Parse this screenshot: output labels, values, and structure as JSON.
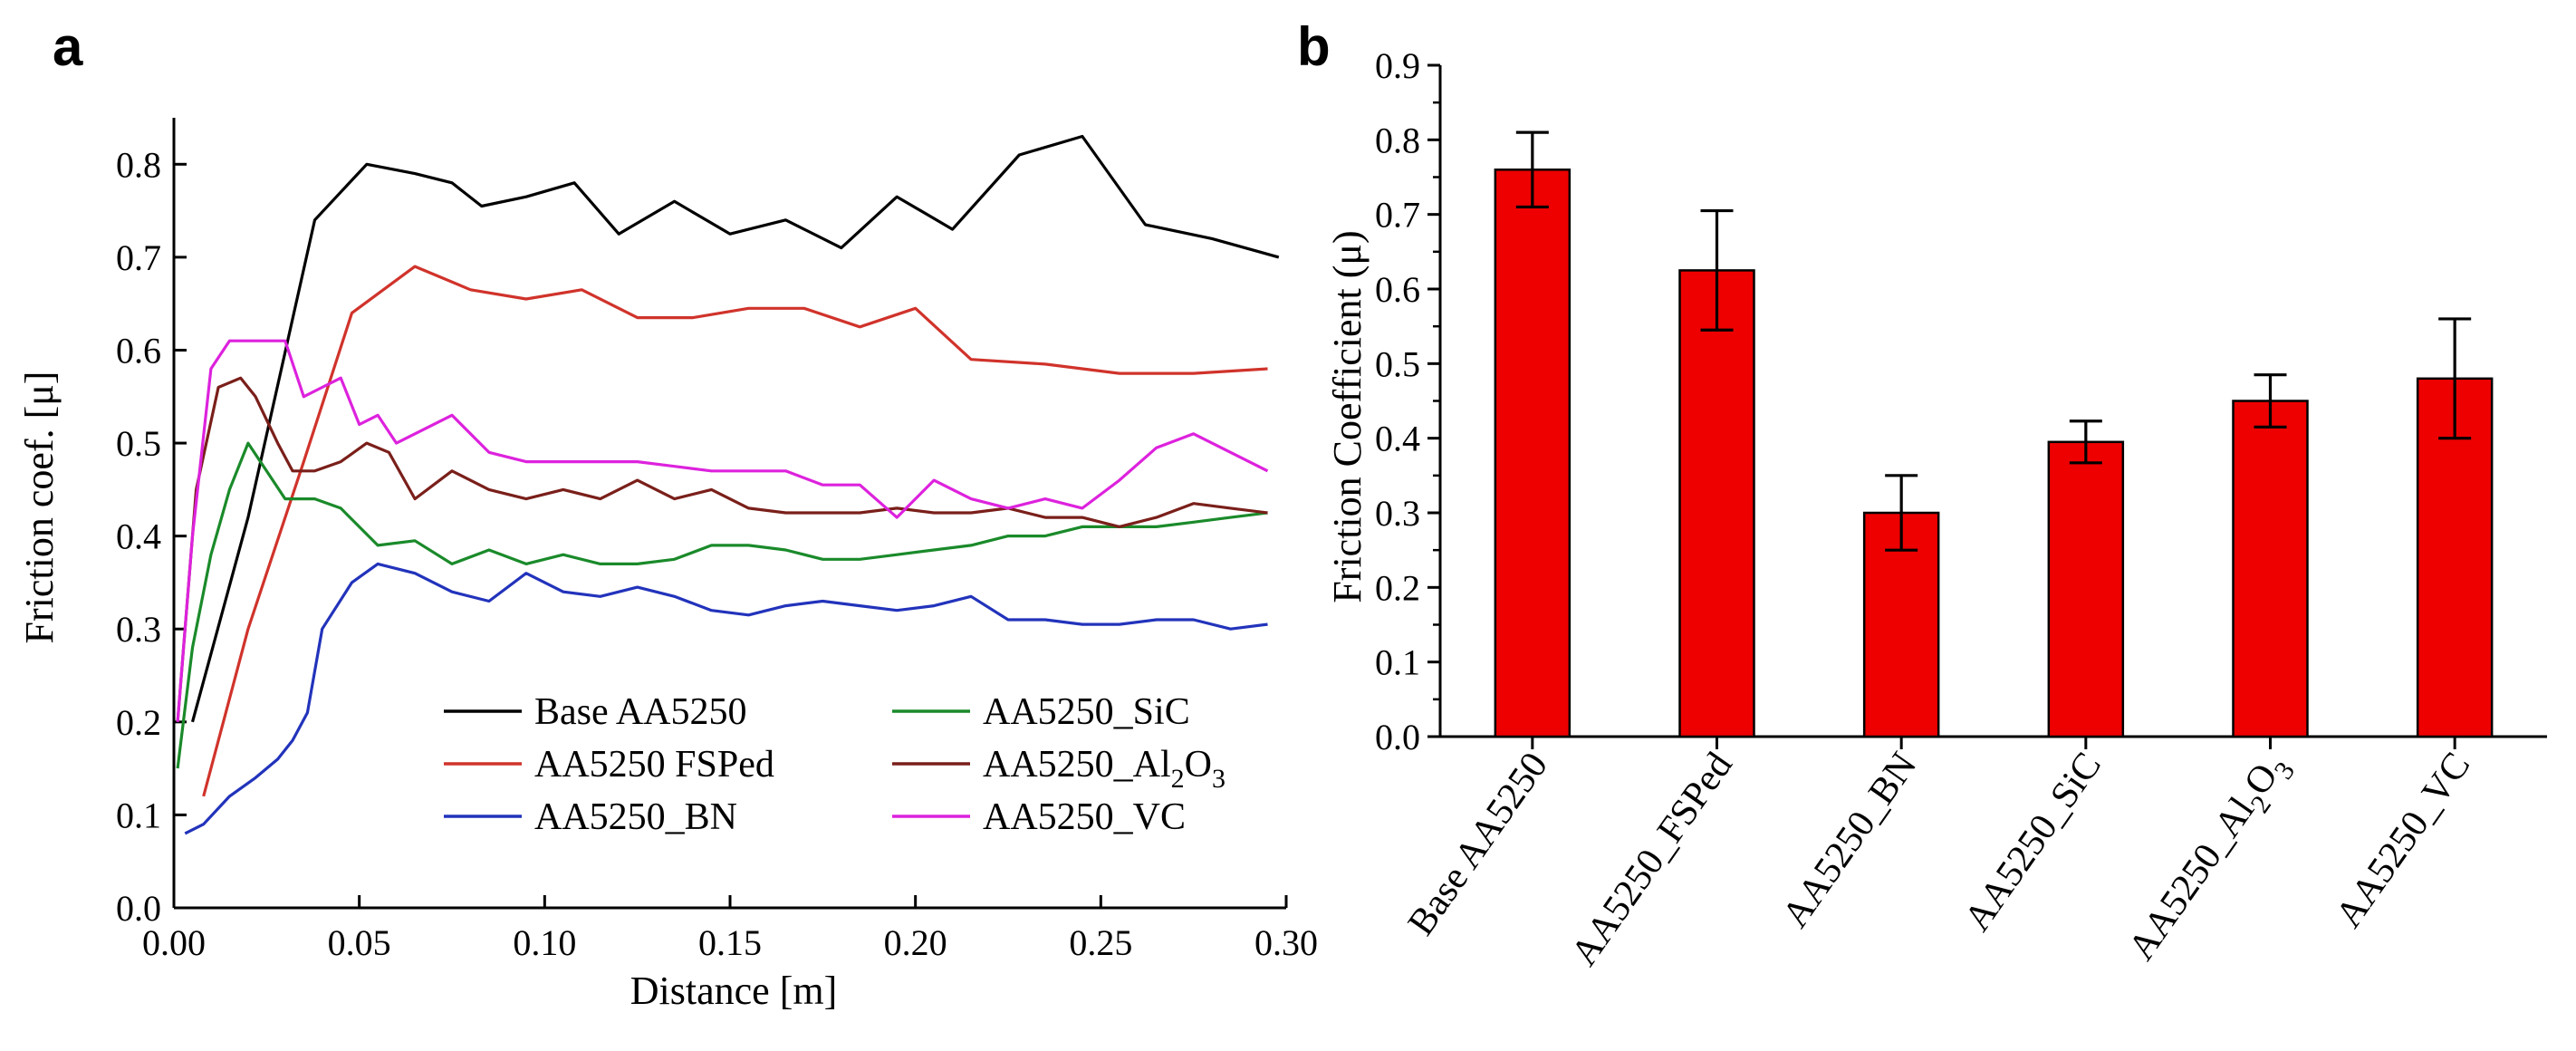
{
  "chart_data": [
    {
      "panel_label": "a",
      "type": "line",
      "xlabel": "Distance [m]",
      "ylabel": "Friction coef. [μ]",
      "xlim": [
        0,
        0.3
      ],
      "ylim": [
        0,
        0.85
      ],
      "x_ticks": [
        "0.00",
        "0.05",
        "0.10",
        "0.15",
        "0.20",
        "0.25",
        "0.30"
      ],
      "x_tick_values": [
        0,
        0.05,
        0.1,
        0.15,
        0.2,
        0.25,
        0.3
      ],
      "y_ticks": [
        "0.0",
        "0.1",
        "0.2",
        "0.3",
        "0.4",
        "0.5",
        "0.6",
        "0.7",
        "0.8"
      ],
      "y_tick_values": [
        0,
        0.1,
        0.2,
        0.3,
        0.4,
        0.5,
        0.6,
        0.7,
        0.8
      ],
      "legend_position": "bottom-right",
      "series": [
        {
          "name": "Base AA5250",
          "label_main": "Base AA5250",
          "label_sub": "",
          "label_tail": "",
          "color": "#000000",
          "x": [
            0.005,
            0.02,
            0.038,
            0.052,
            0.065,
            0.075,
            0.083,
            0.095,
            0.108,
            0.12,
            0.135,
            0.15,
            0.165,
            0.18,
            0.195,
            0.21,
            0.228,
            0.245,
            0.262,
            0.28,
            0.298
          ],
          "y": [
            0.2,
            0.42,
            0.74,
            0.8,
            0.79,
            0.78,
            0.755,
            0.765,
            0.78,
            0.725,
            0.76,
            0.725,
            0.74,
            0.71,
            0.765,
            0.73,
            0.81,
            0.83,
            0.735,
            0.72,
            0.7
          ]
        },
        {
          "name": "AA5250 FSPed",
          "label_main": "AA5250 FSPed",
          "label_sub": "",
          "label_tail": "",
          "color": "#d0332b",
          "x": [
            0.008,
            0.02,
            0.035,
            0.048,
            0.065,
            0.08,
            0.095,
            0.11,
            0.125,
            0.14,
            0.155,
            0.17,
            0.185,
            0.2,
            0.215,
            0.235,
            0.255,
            0.275,
            0.295
          ],
          "y": [
            0.12,
            0.3,
            0.48,
            0.64,
            0.69,
            0.665,
            0.655,
            0.665,
            0.635,
            0.635,
            0.645,
            0.645,
            0.625,
            0.645,
            0.59,
            0.585,
            0.575,
            0.575,
            0.58
          ]
        },
        {
          "name": "AA5250_BN",
          "label_main": "AA5250_BN",
          "label_sub": "",
          "label_tail": "",
          "color": "#2233bb",
          "x": [
            0.003,
            0.008,
            0.015,
            0.022,
            0.028,
            0.032,
            0.036,
            0.04,
            0.048,
            0.055,
            0.065,
            0.075,
            0.085,
            0.095,
            0.105,
            0.115,
            0.125,
            0.135,
            0.145,
            0.155,
            0.165,
            0.175,
            0.185,
            0.195,
            0.205,
            0.215,
            0.225,
            0.235,
            0.245,
            0.255,
            0.265,
            0.275,
            0.285,
            0.295
          ],
          "y": [
            0.08,
            0.09,
            0.12,
            0.14,
            0.16,
            0.18,
            0.21,
            0.3,
            0.35,
            0.37,
            0.36,
            0.34,
            0.33,
            0.36,
            0.34,
            0.335,
            0.345,
            0.335,
            0.32,
            0.315,
            0.325,
            0.33,
            0.325,
            0.32,
            0.325,
            0.335,
            0.31,
            0.31,
            0.305,
            0.305,
            0.31,
            0.31,
            0.3,
            0.305
          ]
        },
        {
          "name": "AA5250_SiC",
          "label_main": "AA5250_SiC",
          "label_sub": "",
          "label_tail": "",
          "color": "#1a8a2a",
          "x": [
            0.001,
            0.005,
            0.01,
            0.015,
            0.02,
            0.025,
            0.03,
            0.038,
            0.045,
            0.055,
            0.065,
            0.075,
            0.085,
            0.095,
            0.105,
            0.115,
            0.125,
            0.135,
            0.145,
            0.155,
            0.165,
            0.175,
            0.185,
            0.195,
            0.205,
            0.215,
            0.225,
            0.235,
            0.245,
            0.255,
            0.265,
            0.275,
            0.285,
            0.295
          ],
          "y": [
            0.15,
            0.28,
            0.38,
            0.45,
            0.5,
            0.47,
            0.44,
            0.44,
            0.43,
            0.39,
            0.395,
            0.37,
            0.385,
            0.37,
            0.38,
            0.37,
            0.37,
            0.375,
            0.39,
            0.39,
            0.385,
            0.375,
            0.375,
            0.38,
            0.385,
            0.39,
            0.4,
            0.4,
            0.41,
            0.41,
            0.41,
            0.415,
            0.42,
            0.425
          ]
        },
        {
          "name": "AA5250_Al2O3",
          "label_main": "AA5250_Al",
          "label_sub": "2",
          "label_tail": "O₃",
          "color": "#7a1f1a",
          "x": [
            0.001,
            0.006,
            0.012,
            0.018,
            0.022,
            0.028,
            0.032,
            0.038,
            0.045,
            0.052,
            0.058,
            0.065,
            0.075,
            0.085,
            0.095,
            0.105,
            0.115,
            0.125,
            0.135,
            0.145,
            0.155,
            0.165,
            0.175,
            0.185,
            0.195,
            0.205,
            0.215,
            0.225,
            0.235,
            0.245,
            0.255,
            0.265,
            0.275,
            0.285,
            0.295
          ],
          "y": [
            0.2,
            0.45,
            0.56,
            0.57,
            0.55,
            0.5,
            0.47,
            0.47,
            0.48,
            0.5,
            0.49,
            0.44,
            0.47,
            0.45,
            0.44,
            0.45,
            0.44,
            0.46,
            0.44,
            0.45,
            0.43,
            0.425,
            0.425,
            0.425,
            0.43,
            0.425,
            0.425,
            0.43,
            0.42,
            0.42,
            0.41,
            0.42,
            0.435,
            0.43,
            0.425
          ]
        },
        {
          "name": "AA5250_VC",
          "label_main": "AA5250_VC",
          "label_sub": "",
          "label_tail": "",
          "color": "#dd22dd",
          "x": [
            0.001,
            0.005,
            0.01,
            0.015,
            0.02,
            0.025,
            0.03,
            0.035,
            0.04,
            0.045,
            0.05,
            0.055,
            0.06,
            0.065,
            0.075,
            0.085,
            0.095,
            0.105,
            0.115,
            0.125,
            0.135,
            0.145,
            0.155,
            0.165,
            0.175,
            0.185,
            0.195,
            0.205,
            0.215,
            0.225,
            0.235,
            0.245,
            0.255,
            0.265,
            0.275,
            0.285,
            0.295
          ],
          "y": [
            0.2,
            0.4,
            0.58,
            0.61,
            0.61,
            0.61,
            0.61,
            0.55,
            0.56,
            0.57,
            0.52,
            0.53,
            0.5,
            0.51,
            0.53,
            0.49,
            0.48,
            0.48,
            0.48,
            0.48,
            0.475,
            0.47,
            0.47,
            0.47,
            0.455,
            0.455,
            0.42,
            0.46,
            0.44,
            0.43,
            0.44,
            0.43,
            0.46,
            0.495,
            0.51,
            0.49,
            0.47
          ]
        }
      ]
    },
    {
      "panel_label": "b",
      "type": "bar",
      "ylabel": "Friction Coefficient (μ)",
      "xlabel": "",
      "ylim": [
        0,
        0.9
      ],
      "y_ticks": [
        "0.0",
        "0.1",
        "0.2",
        "0.3",
        "0.4",
        "0.5",
        "0.6",
        "0.7",
        "0.8",
        "0.9"
      ],
      "y_tick_values": [
        0,
        0.1,
        0.2,
        0.3,
        0.4,
        0.5,
        0.6,
        0.7,
        0.8,
        0.9
      ],
      "categories": [
        "Base AA5250",
        "AA5250_FSPed",
        "AA5250_BN",
        "AA5250_SiC",
        "AA5250_Al2O3",
        "AA5250_VC"
      ],
      "category_labels": [
        {
          "main": "Base AA5250",
          "sub": "",
          "tail": ""
        },
        {
          "main": "AA5250_FSPed",
          "sub": "",
          "tail": ""
        },
        {
          "main": "AA5250_BN",
          "sub": "",
          "tail": ""
        },
        {
          "main": "AA5250_SiC",
          "sub": "",
          "tail": ""
        },
        {
          "main": "AA5250_Al",
          "sub": "2",
          "tail": "O₃"
        },
        {
          "main": "AA5250_VC",
          "sub": "",
          "tail": ""
        }
      ],
      "values": [
        0.76,
        0.625,
        0.3,
        0.395,
        0.45,
        0.48
      ],
      "errors": [
        0.05,
        0.08,
        0.05,
        0.028,
        0.035,
        0.08
      ],
      "bar_color": "#ee0000"
    }
  ]
}
